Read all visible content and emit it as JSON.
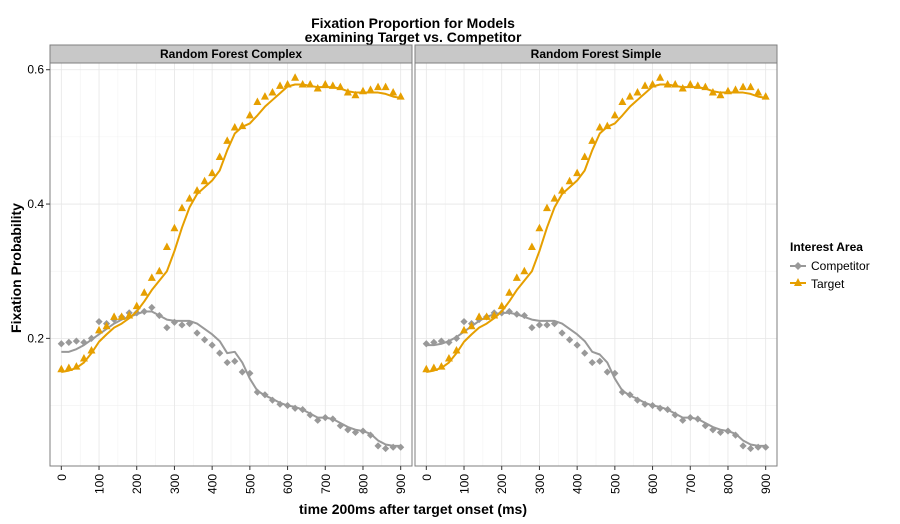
{
  "colors": {
    "competitor": "#999999",
    "target": "#E69F00",
    "strip_fill": "#C8C8C8",
    "panel_border": "#7F7F7F",
    "grid_major": "#E6E6E6",
    "grid_minor": "#F2F2F2"
  },
  "chart_data": {
    "type": "line",
    "title_lines": [
      "Fixation Proportion for Models",
      "examining Target vs. Competitor"
    ],
    "xlabel": "time 200ms after target onset (ms)",
    "ylabel": "Fixation Probability",
    "xlim": [
      -30,
      930
    ],
    "ylim": [
      0.01,
      0.61
    ],
    "x_ticks": [
      0,
      100,
      200,
      300,
      400,
      500,
      600,
      700,
      800,
      900
    ],
    "y_ticks": [
      0.2,
      0.4,
      0.6
    ],
    "y_tick_labels": [
      "0.2",
      "0.4",
      "0.6"
    ],
    "grid": true,
    "legend": {
      "title": "Interest Area",
      "position": "right",
      "entries": [
        {
          "label": "Competitor",
          "marker": "diamond",
          "color_key": "competitor"
        },
        {
          "label": "Target",
          "marker": "triangle",
          "color_key": "target"
        }
      ]
    },
    "x": [
      0,
      20,
      40,
      60,
      80,
      100,
      120,
      140,
      160,
      180,
      200,
      220,
      240,
      260,
      280,
      300,
      320,
      340,
      360,
      380,
      400,
      420,
      440,
      460,
      480,
      500,
      520,
      540,
      560,
      580,
      600,
      620,
      640,
      660,
      680,
      700,
      720,
      740,
      760,
      780,
      800,
      820,
      840,
      860,
      880,
      900
    ],
    "panels": [
      {
        "name": "Random Forest Complex",
        "series": [
          {
            "name": "Competitor",
            "marker": "diamond",
            "points": [
              0.192,
              0.194,
              0.196,
              0.194,
              0.2,
              0.225,
              0.222,
              0.228,
              0.232,
              0.238,
              0.238,
              0.24,
              0.246,
              0.234,
              0.216,
              0.224,
              0.22,
              0.222,
              0.208,
              0.198,
              0.19,
              0.178,
              0.164,
              0.166,
              0.15,
              0.148,
              0.12,
              0.116,
              0.108,
              0.102,
              0.1,
              0.096,
              0.094,
              0.086,
              0.078,
              0.082,
              0.08,
              0.07,
              0.064,
              0.06,
              0.062,
              0.056,
              0.04,
              0.036,
              0.038,
              0.038
            ],
            "fit": [
              0.18,
              0.18,
              0.184,
              0.19,
              0.198,
              0.206,
              0.214,
              0.222,
              0.228,
              0.232,
              0.236,
              0.24,
              0.24,
              0.234,
              0.228,
              0.226,
              0.226,
              0.226,
              0.222,
              0.214,
              0.206,
              0.196,
              0.178,
              0.18,
              0.164,
              0.14,
              0.122,
              0.115,
              0.11,
              0.104,
              0.1,
              0.098,
              0.094,
              0.088,
              0.082,
              0.082,
              0.08,
              0.074,
              0.068,
              0.064,
              0.062,
              0.058,
              0.048,
              0.042,
              0.04,
              0.04
            ]
          },
          {
            "name": "Target",
            "marker": "triangle",
            "points": [
              0.154,
              0.156,
              0.158,
              0.17,
              0.182,
              0.212,
              0.218,
              0.232,
              0.232,
              0.234,
              0.248,
              0.268,
              0.29,
              0.3,
              0.336,
              0.364,
              0.394,
              0.408,
              0.42,
              0.434,
              0.446,
              0.47,
              0.494,
              0.514,
              0.516,
              0.532,
              0.552,
              0.56,
              0.566,
              0.576,
              0.578,
              0.588,
              0.578,
              0.578,
              0.572,
              0.578,
              0.576,
              0.574,
              0.566,
              0.562,
              0.568,
              0.57,
              0.574,
              0.574,
              0.566,
              0.56
            ],
            "fit": [
              0.15,
              0.152,
              0.156,
              0.164,
              0.178,
              0.195,
              0.206,
              0.216,
              0.222,
              0.23,
              0.24,
              0.255,
              0.272,
              0.286,
              0.3,
              0.33,
              0.365,
              0.395,
              0.415,
              0.425,
              0.435,
              0.45,
              0.48,
              0.505,
              0.515,
              0.52,
              0.532,
              0.545,
              0.555,
              0.565,
              0.575,
              0.578,
              0.578,
              0.576,
              0.574,
              0.574,
              0.574,
              0.572,
              0.568,
              0.566,
              0.566,
              0.566,
              0.566,
              0.564,
              0.56,
              0.558
            ]
          }
        ]
      },
      {
        "name": "Random Forest Simple",
        "series": [
          {
            "name": "Competitor",
            "marker": "diamond",
            "points": [
              0.192,
              0.194,
              0.196,
              0.194,
              0.2,
              0.225,
              0.222,
              0.228,
              0.232,
              0.238,
              0.238,
              0.24,
              0.236,
              0.234,
              0.216,
              0.22,
              0.22,
              0.222,
              0.208,
              0.198,
              0.19,
              0.178,
              0.164,
              0.166,
              0.15,
              0.148,
              0.12,
              0.116,
              0.108,
              0.102,
              0.1,
              0.096,
              0.094,
              0.086,
              0.078,
              0.082,
              0.08,
              0.07,
              0.064,
              0.06,
              0.062,
              0.056,
              0.04,
              0.036,
              0.038,
              0.038
            ],
            "fit": [
              0.19,
              0.19,
              0.192,
              0.196,
              0.202,
              0.21,
              0.218,
              0.226,
              0.232,
              0.236,
              0.238,
              0.238,
              0.236,
              0.232,
              0.228,
              0.226,
              0.226,
              0.226,
              0.222,
              0.214,
              0.206,
              0.196,
              0.18,
              0.176,
              0.164,
              0.14,
              0.122,
              0.115,
              0.11,
              0.104,
              0.1,
              0.098,
              0.094,
              0.088,
              0.082,
              0.082,
              0.08,
              0.074,
              0.068,
              0.064,
              0.062,
              0.058,
              0.048,
              0.042,
              0.04,
              0.04
            ]
          },
          {
            "name": "Target",
            "marker": "triangle",
            "points": [
              0.154,
              0.156,
              0.158,
              0.17,
              0.182,
              0.212,
              0.218,
              0.232,
              0.232,
              0.234,
              0.248,
              0.268,
              0.29,
              0.3,
              0.336,
              0.364,
              0.394,
              0.408,
              0.42,
              0.434,
              0.446,
              0.47,
              0.494,
              0.514,
              0.516,
              0.532,
              0.552,
              0.56,
              0.566,
              0.576,
              0.578,
              0.588,
              0.578,
              0.578,
              0.572,
              0.578,
              0.576,
              0.574,
              0.566,
              0.562,
              0.568,
              0.57,
              0.574,
              0.574,
              0.566,
              0.56
            ],
            "fit": [
              0.15,
              0.152,
              0.156,
              0.164,
              0.178,
              0.195,
              0.206,
              0.216,
              0.222,
              0.23,
              0.24,
              0.255,
              0.272,
              0.286,
              0.3,
              0.33,
              0.365,
              0.395,
              0.415,
              0.425,
              0.435,
              0.45,
              0.48,
              0.505,
              0.515,
              0.52,
              0.532,
              0.545,
              0.555,
              0.565,
              0.575,
              0.578,
              0.578,
              0.576,
              0.574,
              0.574,
              0.574,
              0.572,
              0.568,
              0.566,
              0.566,
              0.566,
              0.566,
              0.564,
              0.56,
              0.558
            ]
          }
        ]
      }
    ]
  }
}
